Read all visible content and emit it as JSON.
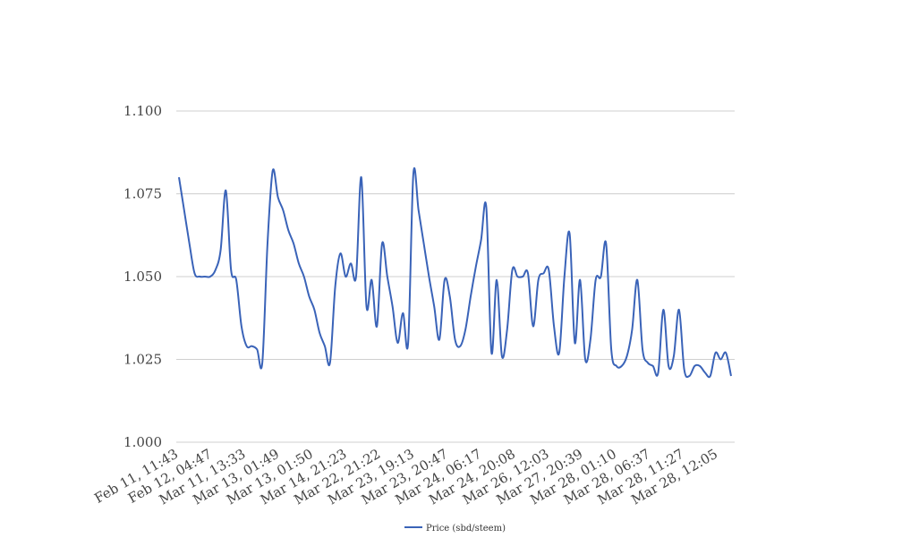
{
  "chart_data": {
    "type": "line",
    "title": "",
    "xlabel": "",
    "ylabel": "",
    "ylim": [
      1.0,
      1.1
    ],
    "y_ticks": [
      "1.000",
      "1.025",
      "1.050",
      "1.075",
      "1.100"
    ],
    "x_tick_labels": [
      "Feb 11, 11:43",
      "Feb 12, 04:47",
      "Mar 11, 13:33",
      "Mar 13, 01:49",
      "Mar 13, 01:50",
      "Mar 14, 21:23",
      "Mar 22, 21:22",
      "Mar 23, 19:13",
      "Mar 23, 20:47",
      "Mar 24, 06:17",
      "Mar 24, 20:08",
      "Mar 26, 12:03",
      "Mar 27, 20:39",
      "Mar 28, 01:10",
      "Mar 28, 06:37",
      "Mar 28, 11:27",
      "Mar 28, 12:05"
    ],
    "grid": true,
    "legend_position": "bottom",
    "series": [
      {
        "name": "Price (sbd/steem)",
        "color": "#3a63b8",
        "values": [
          1.08,
          1.07,
          1.06,
          1.051,
          1.05,
          1.05,
          1.05,
          1.052,
          1.058,
          1.076,
          1.052,
          1.049,
          1.035,
          1.029,
          1.029,
          1.028,
          1.024,
          1.06,
          1.082,
          1.074,
          1.07,
          1.064,
          1.06,
          1.054,
          1.05,
          1.044,
          1.04,
          1.033,
          1.029,
          1.024,
          1.047,
          1.057,
          1.05,
          1.054,
          1.05,
          1.08,
          1.041,
          1.049,
          1.035,
          1.06,
          1.05,
          1.041,
          1.03,
          1.039,
          1.03,
          1.081,
          1.07,
          1.06,
          1.05,
          1.041,
          1.031,
          1.049,
          1.044,
          1.031,
          1.029,
          1.034,
          1.044,
          1.053,
          1.061,
          1.071,
          1.027,
          1.049,
          1.026,
          1.034,
          1.052,
          1.05,
          1.05,
          1.051,
          1.035,
          1.049,
          1.051,
          1.052,
          1.035,
          1.027,
          1.05,
          1.063,
          1.03,
          1.049,
          1.025,
          1.031,
          1.049,
          1.05,
          1.06,
          1.028,
          1.023,
          1.023,
          1.026,
          1.034,
          1.049,
          1.028,
          1.024,
          1.023,
          1.021,
          1.04,
          1.023,
          1.026,
          1.04,
          1.022,
          1.02,
          1.023,
          1.023,
          1.021,
          1.02,
          1.027,
          1.025,
          1.027,
          1.02
        ]
      }
    ]
  }
}
